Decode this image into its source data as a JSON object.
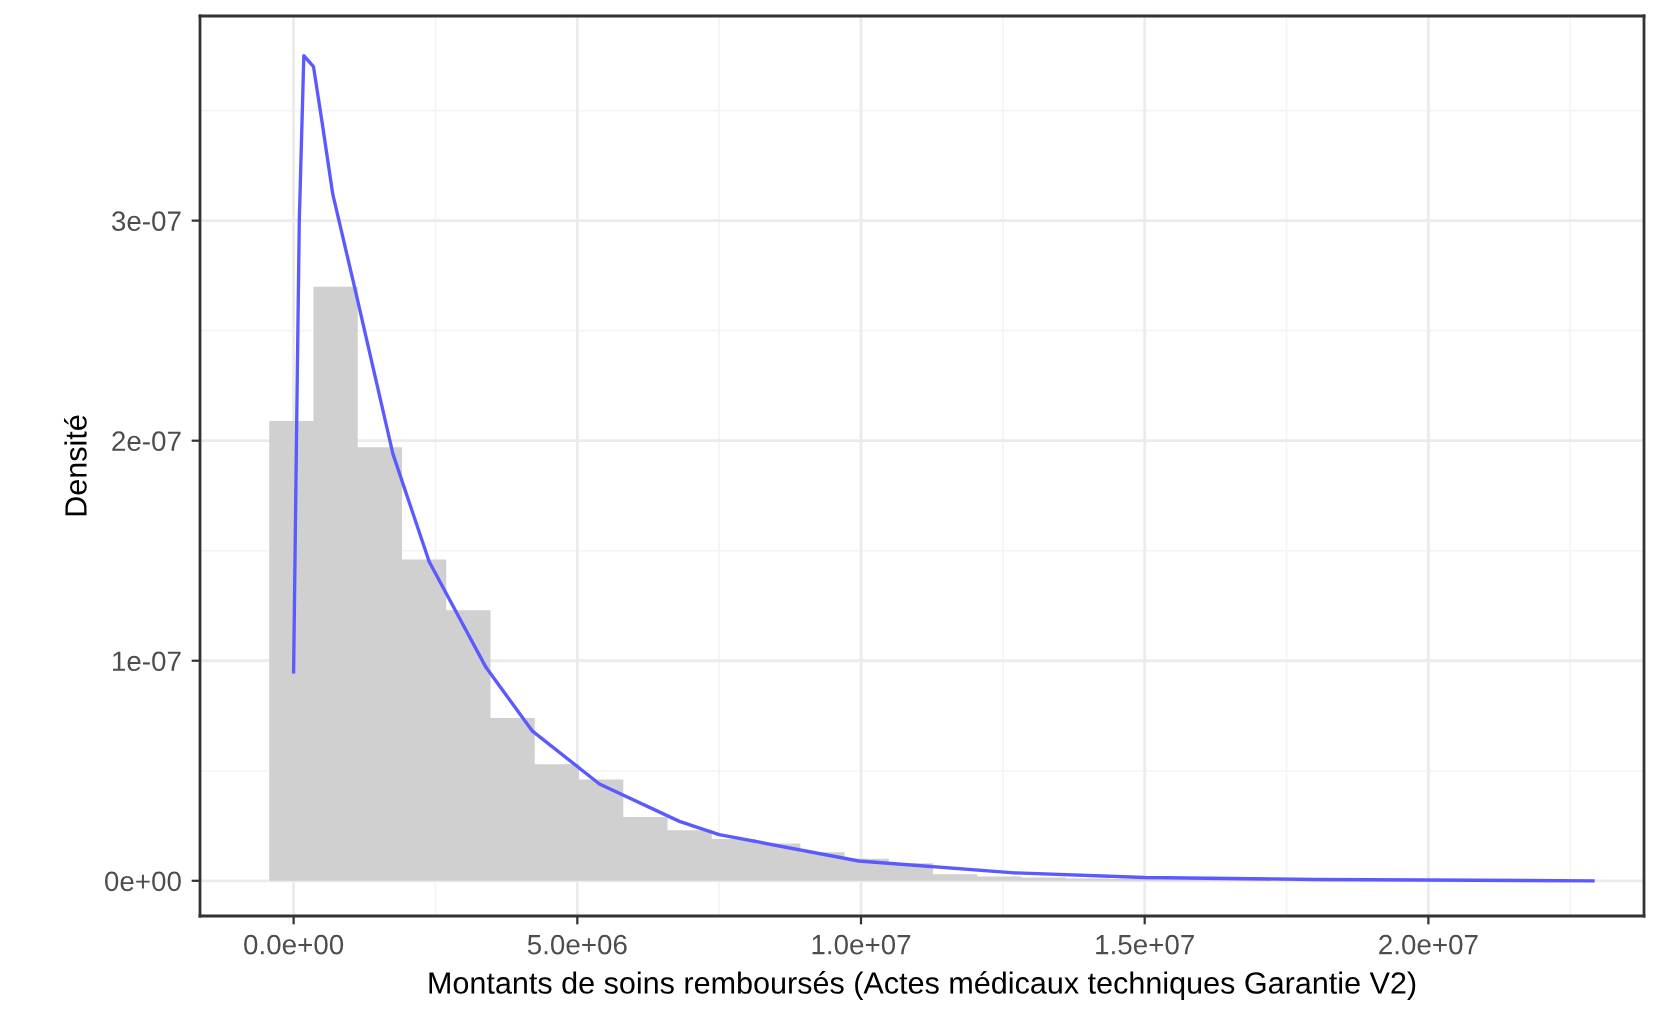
{
  "chart_data": {
    "type": "histogram",
    "xlabel": "Montants de soins remboursés (Actes médicaux techniques Garantie V2)",
    "ylabel": "Densité",
    "bins": [
      -430000,
      350000,
      1130000,
      1910000,
      2690000,
      3470000,
      4250000,
      5030000,
      5810000,
      6590000,
      7370000,
      8150000,
      8930000,
      9710000,
      10490000,
      11270000,
      12050000,
      12830000,
      13610000,
      14390000,
      15170000,
      15950000,
      16730000,
      17510000,
      18290000,
      19070000
    ],
    "values": [
      2.09e-07,
      2.7e-07,
      1.97e-07,
      1.46e-07,
      1.23e-07,
      7.4e-08,
      5.3e-08,
      4.6e-08,
      2.9e-08,
      2.3e-08,
      1.9e-08,
      1.7e-08,
      1.3e-08,
      1e-08,
      8e-09,
      3e-09,
      2e-09,
      1.5e-09,
      1e-09,
      8e-10,
      6e-10,
      5e-10,
      5e-10,
      1e-09,
      4e-10
    ],
    "color": "#d0d0d0",
    "series": [
      {
        "type": "line",
        "color": "#5a5aff",
        "x": [
          0,
          50000,
          100000,
          180000,
          350000,
          500000,
          690000,
          1100000,
          1750000,
          2390000,
          3390000,
          4210000,
          5390000,
          6800000,
          7500000,
          9960000,
          12700000,
          15000000,
          18000000,
          22900000
        ],
        "values": [
          9.5e-08,
          2e-07,
          3e-07,
          3.75e-07,
          3.7e-07,
          3.45e-07,
          3.12e-07,
          2.67e-07,
          1.94e-07,
          1.45e-07,
          9.7e-08,
          6.8e-08,
          4.4e-08,
          2.7e-08,
          2.1e-08,
          9e-09,
          3.6e-09,
          1.5e-09,
          6e-10,
          0.0
        ]
      }
    ],
    "xlim": [
      -1650000,
      23800000
    ],
    "ylim": [
      -1.6e-08,
      3.93e-07
    ],
    "xticks": [
      {
        "value": 0,
        "label": "0.0e+00"
      },
      {
        "value": 5000000,
        "label": "5.0e+06"
      },
      {
        "value": 10000000,
        "label": "1.0e+07"
      },
      {
        "value": 15000000,
        "label": "1.5e+07"
      },
      {
        "value": 20000000,
        "label": "2.0e+07"
      }
    ],
    "yticks": [
      {
        "value": 0,
        "label": "0e+00"
      },
      {
        "value": 1e-07,
        "label": "1e-07"
      },
      {
        "value": 2e-07,
        "label": "2e-07"
      },
      {
        "value": 3e-07,
        "label": "3e-07"
      }
    ],
    "grid": true
  }
}
